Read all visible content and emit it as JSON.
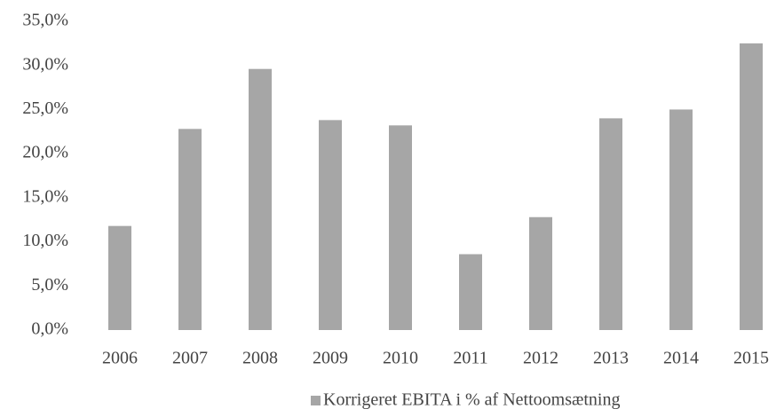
{
  "chart_data": {
    "type": "bar",
    "categories": [
      "2006",
      "2007",
      "2008",
      "2009",
      "2010",
      "2011",
      "2012",
      "2013",
      "2014",
      "2015"
    ],
    "series": [
      {
        "name": "Korrigeret EBITA i % af Nettoomsætning",
        "color": "#a6a6a6",
        "values": [
          11.8,
          22.8,
          29.6,
          23.8,
          23.2,
          8.6,
          12.8,
          24.0,
          25.0,
          32.5
        ]
      }
    ],
    "ylim": [
      0,
      35
    ],
    "yticks": [
      {
        "value": 0,
        "label": "0,0%"
      },
      {
        "value": 5,
        "label": "5,0%"
      },
      {
        "value": 10,
        "label": "10,0%"
      },
      {
        "value": 15,
        "label": "15,0%"
      },
      {
        "value": 20,
        "label": "20,0%"
      },
      {
        "value": 25,
        "label": "25,0%"
      },
      {
        "value": 30,
        "label": "30,0%"
      },
      {
        "value": 35,
        "label": "35,0%"
      }
    ],
    "grid": false,
    "legend": "bottom"
  }
}
